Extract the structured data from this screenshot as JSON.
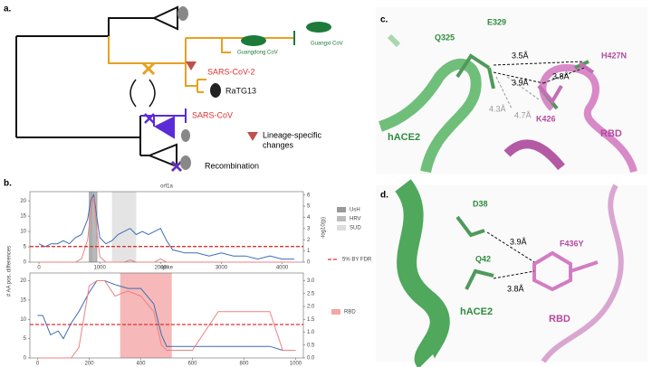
{
  "panels": {
    "a": {
      "label": "a.",
      "guangxi": "Guangxi CoV",
      "guangdong": "Guangdong CoV",
      "sars2": "SARS-CoV-2",
      "ratg13": "RaTG13",
      "sars": "SARS-CoV",
      "lineage1": "Lineage-specific",
      "lineage2": "changes",
      "recombination": "Recombination"
    },
    "b": {
      "label": "b.",
      "y_label": "# AA pos. differences",
      "y2_label": "-log10(p)"
    },
    "c": {
      "label": "c.",
      "e329": "E329",
      "q325": "Q325",
      "d35": "3.5Å",
      "d39": "3.9Å",
      "d38": "3.8Å",
      "h427n": "H427N",
      "d43": "4.3Å",
      "d47": "4.7Å",
      "k426": "K426",
      "hace2": "hACE2",
      "rbd": "RBD"
    },
    "d": {
      "label": "d.",
      "d38res": "D38",
      "d39": "3.9Å",
      "f436y": "F436Y",
      "q42": "Q42",
      "d38": "3.8Å",
      "hace2": "hACE2",
      "rbd": "RBD"
    }
  },
  "chart_data": [
    {
      "type": "line",
      "title": "orf1a",
      "x": [
        0,
        100,
        200,
        300,
        400,
        500,
        600,
        700,
        800,
        850,
        900,
        950,
        1000,
        1100,
        1200,
        1300,
        1400,
        1500,
        1600,
        1700,
        1800,
        1900,
        2000,
        2100,
        2200,
        2400,
        2600,
        2800,
        3000,
        3200,
        3400,
        3600,
        3800,
        4000,
        4200
      ],
      "series": [
        {
          "name": "AA differences",
          "color": "#3b6db3",
          "values": [
            6,
            5,
            6,
            6,
            7,
            6,
            8,
            9,
            14,
            20,
            22,
            15,
            8,
            6,
            7,
            9,
            10,
            11,
            9,
            10,
            9,
            10,
            11,
            7,
            4,
            3,
            3,
            2,
            3,
            2,
            2,
            1,
            2,
            1,
            1
          ]
        },
        {
          "name": "p-value",
          "color": "#f08080",
          "axis": "y2",
          "values": [
            0,
            0,
            0,
            0,
            0,
            0,
            0,
            0.3,
            2,
            4.5,
            5.8,
            3,
            0.5,
            0,
            0,
            0,
            0,
            0.2,
            0,
            0,
            0,
            0,
            0.3,
            0,
            0,
            0,
            0,
            0,
            0,
            0,
            0,
            0,
            0,
            0,
            0
          ]
        }
      ],
      "regions": [
        {
          "name": "UsH",
          "start": 820,
          "end": 960,
          "color": "#999999"
        },
        {
          "name": "HRV",
          "start": 880,
          "end": 940,
          "color": "#bbbbbb"
        },
        {
          "name": "SUD",
          "start": 1200,
          "end": 1600,
          "color": "#dddddd"
        }
      ],
      "threshold": 1.4,
      "threshold_color": "#e03030",
      "xlim": [
        -150,
        4350
      ],
      "xticks": [
        0,
        1000,
        2000,
        3000,
        4000
      ],
      "ylim": [
        0,
        23
      ],
      "yticks": [
        0,
        5,
        10,
        15,
        20
      ],
      "y2lim": [
        0,
        6.3
      ],
      "y2ticks": [
        0,
        1,
        2,
        3,
        4,
        5,
        6
      ]
    },
    {
      "type": "line",
      "title": "spike",
      "x": [
        0,
        20,
        50,
        80,
        100,
        130,
        160,
        200,
        230,
        260,
        300,
        350,
        400,
        450,
        480,
        500,
        520,
        600,
        700,
        800,
        900,
        950,
        1000
      ],
      "series": [
        {
          "name": "AA differences",
          "color": "#3b6db3",
          "values": [
            11,
            11,
            6,
            7,
            5,
            9,
            12,
            17,
            20,
            20,
            19,
            18,
            18,
            14,
            6,
            3,
            3,
            3,
            3,
            3,
            3,
            2,
            2
          ]
        },
        {
          "name": "p-value",
          "color": "#f08080",
          "axis": "y2",
          "values": [
            0,
            0,
            0,
            0,
            0,
            0,
            0.4,
            2.8,
            3.0,
            3.0,
            2.4,
            2.6,
            2.4,
            1.8,
            0.5,
            0.3,
            0.3,
            0.3,
            1.8,
            1.8,
            1.8,
            0.3,
            0.3
          ]
        }
      ],
      "regions": [
        {
          "name": "RBD",
          "start": 320,
          "end": 520,
          "color": "#f4a6a6"
        }
      ],
      "threshold": 1.3,
      "threshold_color": "#e03030",
      "threshold_label": "5% BY FDR",
      "xlim": [
        -30,
        1030
      ],
      "xticks": [
        0,
        200,
        400,
        600,
        800,
        1000
      ],
      "ylim": [
        0,
        22
      ],
      "yticks": [
        0,
        5,
        10,
        15,
        20
      ],
      "y2lim": [
        0,
        3.3
      ],
      "y2ticks": [
        {
          "value": 0,
          "label": "0.0"
        },
        {
          "value": 0.5,
          "label": "0.5"
        },
        {
          "value": 1,
          "label": "1.0"
        },
        {
          "value": 1.5,
          "label": "1.5"
        },
        {
          "value": 2,
          "label": "2.0"
        },
        {
          "value": 2.5,
          "label": "2.5"
        },
        {
          "value": 3,
          "label": "3.0"
        }
      ]
    }
  ]
}
